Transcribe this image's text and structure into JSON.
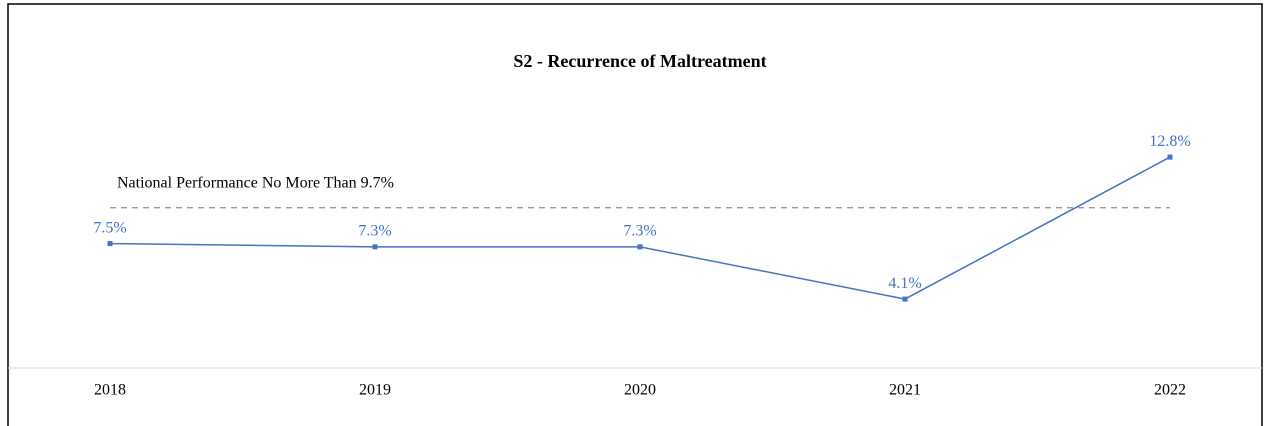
{
  "chart_data": {
    "type": "line",
    "title": "S2 - Recurrence of Maltreatment",
    "categories": [
      "2018",
      "2019",
      "2020",
      "2021",
      "2022"
    ],
    "series": [
      {
        "name": "S2",
        "color": "#4472c4",
        "values": [
          7.5,
          7.3,
          7.3,
          4.1,
          12.8
        ],
        "value_labels": [
          "7.5%",
          "7.3%",
          "7.3%",
          "4.1%",
          "12.8%"
        ]
      }
    ],
    "reference_line": {
      "value": 9.7,
      "label": "National Performance No More Than 9.7%",
      "color": "#999999"
    },
    "ylim": [
      0,
      14
    ]
  }
}
